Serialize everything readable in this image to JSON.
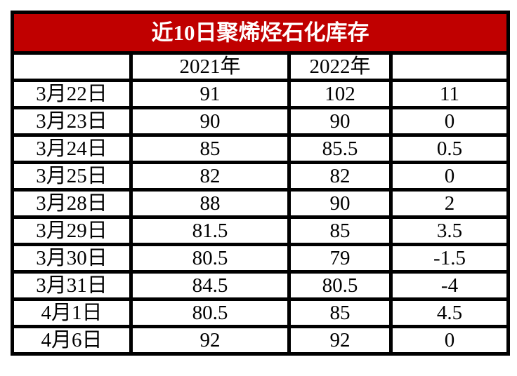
{
  "title": "近10日聚烯烃石化库存",
  "colors": {
    "title_bg": "#c00000",
    "title_text": "#ffffff",
    "border": "#000000",
    "cell_bg": "#ffffff",
    "text": "#000000"
  },
  "table": {
    "header": [
      "",
      "2021年",
      "2022年",
      ""
    ],
    "rows": [
      [
        "3月22日",
        "91",
        "102",
        "11"
      ],
      [
        "3月23日",
        "90",
        "90",
        "0"
      ],
      [
        "3月24日",
        "85",
        "85.5",
        "0.5"
      ],
      [
        "3月25日",
        "82",
        "82",
        "0"
      ],
      [
        "3月28日",
        "88",
        "90",
        "2"
      ],
      [
        "3月29日",
        "81.5",
        "85",
        "3.5"
      ],
      [
        "3月30日",
        "80.5",
        "79",
        "-1.5"
      ],
      [
        "3月31日",
        "84.5",
        "80.5",
        "-4"
      ],
      [
        "4月1日",
        "80.5",
        "85",
        "4.5"
      ],
      [
        "4月6日",
        "92",
        "92",
        "0"
      ]
    ]
  },
  "chart_data": {
    "type": "table",
    "title": "近10日聚烯烃石化库存",
    "columns": [
      "",
      "2021年",
      "2022年",
      ""
    ],
    "categories": [
      "3月22日",
      "3月23日",
      "3月24日",
      "3月25日",
      "3月28日",
      "3月29日",
      "3月30日",
      "3月31日",
      "4月1日",
      "4月6日"
    ],
    "series": [
      {
        "name": "2021年",
        "values": [
          91,
          90,
          85,
          82,
          88,
          81.5,
          80.5,
          84.5,
          80.5,
          92
        ]
      },
      {
        "name": "2022年",
        "values": [
          102,
          90,
          85.5,
          82,
          90,
          85,
          79,
          80.5,
          85,
          92
        ]
      },
      {
        "name": "",
        "values": [
          11,
          0,
          0.5,
          0,
          2,
          3.5,
          -1.5,
          -4,
          4.5,
          0
        ]
      }
    ],
    "layout": {
      "title_position": "top",
      "grid": "on"
    }
  }
}
